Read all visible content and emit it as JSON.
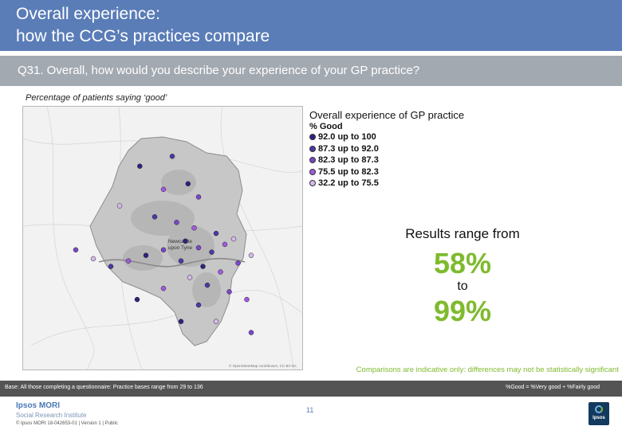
{
  "header": {
    "title_line1": "Overall experience:",
    "title_line2": "how the CCG’s practices compare",
    "title_color": "#5a7db8"
  },
  "question": {
    "text": "Q31. Overall, how would you describe your experience of your GP practice?",
    "bar_color": "#a3a9b1"
  },
  "map": {
    "caption": "Percentage of patients saying ‘good’",
    "place_label_line1": "Newcastle",
    "place_label_line2": "upon Tyne",
    "copyright": "© OpenStreetMap contributors, CC-BY-SA",
    "legend": {
      "title": "Overall experience of GP practice",
      "subtitle": "% Good",
      "items": [
        {
          "label": "92.0 up to 100",
          "color": "#2b2480"
        },
        {
          "label": "87.3 up to 92.0",
          "color": "#4a3aa6"
        },
        {
          "label": "82.3 up to 87.3",
          "color": "#7a47c9"
        },
        {
          "label": "75.5 up to 82.3",
          "color": "#a05ae0"
        },
        {
          "label": "32.2 up to 75.5",
          "color": "#d6b8ea"
        }
      ]
    },
    "practices": [
      {
        "lon": -1.667,
        "lat": 55.046,
        "band": 0
      },
      {
        "lon": -1.63,
        "lat": 55.055,
        "band": 1
      },
      {
        "lon": -1.612,
        "lat": 55.03,
        "band": 0
      },
      {
        "lon": -1.6,
        "lat": 55.018,
        "band": 2
      },
      {
        "lon": -1.64,
        "lat": 55.025,
        "band": 3
      },
      {
        "lon": -1.69,
        "lat": 55.01,
        "band": 4
      },
      {
        "lon": -1.65,
        "lat": 55.0,
        "band": 1
      },
      {
        "lon": -1.625,
        "lat": 54.995,
        "band": 2
      },
      {
        "lon": -1.605,
        "lat": 54.99,
        "band": 3
      },
      {
        "lon": -1.58,
        "lat": 54.985,
        "band": 1
      },
      {
        "lon": -1.615,
        "lat": 54.978,
        "band": 0
      },
      {
        "lon": -1.6,
        "lat": 54.972,
        "band": 2
      },
      {
        "lon": -1.585,
        "lat": 54.968,
        "band": 1
      },
      {
        "lon": -1.57,
        "lat": 54.975,
        "band": 3
      },
      {
        "lon": -1.56,
        "lat": 54.98,
        "band": 4
      },
      {
        "lon": -1.64,
        "lat": 54.97,
        "band": 2
      },
      {
        "lon": -1.66,
        "lat": 54.965,
        "band": 0
      },
      {
        "lon": -1.68,
        "lat": 54.96,
        "band": 3
      },
      {
        "lon": -1.7,
        "lat": 54.955,
        "band": 1
      },
      {
        "lon": -1.72,
        "lat": 54.962,
        "band": 4
      },
      {
        "lon": -1.74,
        "lat": 54.97,
        "band": 2
      },
      {
        "lon": -1.62,
        "lat": 54.96,
        "band": 1
      },
      {
        "lon": -1.595,
        "lat": 54.955,
        "band": 0
      },
      {
        "lon": -1.575,
        "lat": 54.95,
        "band": 3
      },
      {
        "lon": -1.555,
        "lat": 54.958,
        "band": 2
      },
      {
        "lon": -1.54,
        "lat": 54.965,
        "band": 4
      },
      {
        "lon": -1.61,
        "lat": 54.945,
        "band": 4
      },
      {
        "lon": -1.59,
        "lat": 54.938,
        "band": 1
      },
      {
        "lon": -1.565,
        "lat": 54.932,
        "band": 2
      },
      {
        "lon": -1.64,
        "lat": 54.935,
        "band": 3
      },
      {
        "lon": -1.67,
        "lat": 54.925,
        "band": 0
      },
      {
        "lon": -1.6,
        "lat": 54.92,
        "band": 1
      },
      {
        "lon": -1.545,
        "lat": 54.925,
        "band": 3
      },
      {
        "lon": -1.62,
        "lat": 54.905,
        "band": 0
      },
      {
        "lon": -1.58,
        "lat": 54.905,
        "band": 4
      },
      {
        "lon": -1.54,
        "lat": 54.895,
        "band": 2
      }
    ]
  },
  "results": {
    "heading": "Results range from",
    "min": "58%",
    "joiner": "to",
    "max": "99%",
    "highlight_color": "#7fba2e"
  },
  "comparison_note": "Comparisons are indicative only: differences may not be statistically significant",
  "base": {
    "text": "Base: All those completing a questionnaire: Practice bases range from 29 to 136",
    "definition": "%Good = %Very good + %Fairly good"
  },
  "footer": {
    "brand": "Ipsos MORI",
    "brand_sub": "Social Research Institute",
    "copyright": "© Ipsos MORI   18-042653-01 | Version 1 | Public",
    "page": "11",
    "badge": "Ipsos"
  }
}
